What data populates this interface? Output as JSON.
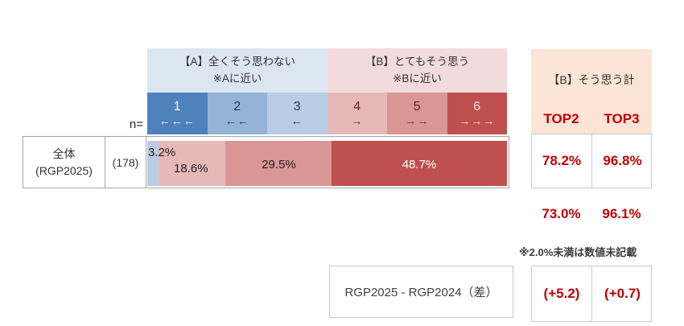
{
  "chart_data": {
    "type": "bar",
    "stacked": true,
    "orientation": "horizontal",
    "row_label": "全体 (RGP2025)",
    "n": 178,
    "scale_points": [
      "1",
      "2",
      "3",
      "4",
      "5",
      "6"
    ],
    "segments": [
      {
        "scale": "3",
        "value": 3.2,
        "label": "3.2%",
        "color": "#b8cce4"
      },
      {
        "scale": "4",
        "value": 18.6,
        "label": "18.6%",
        "color": "#e6b9b8"
      },
      {
        "scale": "5",
        "value": 29.5,
        "label": "29.5%",
        "color": "#d99694"
      },
      {
        "scale": "6",
        "value": 48.7,
        "label": "48.7%",
        "color": "#c0504d"
      }
    ],
    "xlim": [
      0,
      100
    ],
    "summary": {
      "top2": 78.2,
      "top3": 96.8,
      "previous_top2": 73.0,
      "previous_top3": 96.1,
      "diff_top2": "+5.2",
      "diff_top3": "+0.7"
    }
  },
  "scale_header": {
    "a": {
      "line1": "【A】全くそう思わない",
      "line2": "※Aに近い"
    },
    "b": {
      "line1": "【B】とてもそう思う",
      "line2": "※Bに近い"
    }
  },
  "scale_cells": [
    {
      "num": "1",
      "arrows": "←←←",
      "bg": "#4f81bd",
      "fg": "#ffffff"
    },
    {
      "num": "2",
      "arrows": "←←",
      "bg": "#95b3d7",
      "fg": "#17375e"
    },
    {
      "num": "3",
      "arrows": "←",
      "bg": "#b8cce4",
      "fg": "#17375e"
    },
    {
      "num": "4",
      "arrows": "→",
      "bg": "#e6b9b8",
      "fg": "#632423"
    },
    {
      "num": "5",
      "arrows": "→→",
      "bg": "#d99694",
      "fg": "#632423"
    },
    {
      "num": "6",
      "arrows": "→→→",
      "bg": "#c0504d",
      "fg": "#f5e4e3"
    }
  ],
  "table": {
    "n_label": "n=",
    "row_label_line1": "全体",
    "row_label_line2": "(RGP2025)",
    "n_value": "(178)"
  },
  "summary_panel": {
    "title": "【B】そう思う計",
    "col1": "TOP2",
    "col2": "TOP3",
    "current_top2": "78.2%",
    "current_top3": "96.8%",
    "previous_top2": "73.0%",
    "previous_top3": "96.1%",
    "diff_top2": "(+5.2)",
    "diff_top3": "(+0.7)",
    "diff_box_label": "RGP2025 - RGP2024（差）"
  },
  "note": "※2.0%未満は数値未記載",
  "colors": {
    "accent_red": "#c00000",
    "panel_bg": "#fce4d6",
    "header_a_bg": "#dce6f1",
    "header_b_bg": "#f2dcdb"
  }
}
